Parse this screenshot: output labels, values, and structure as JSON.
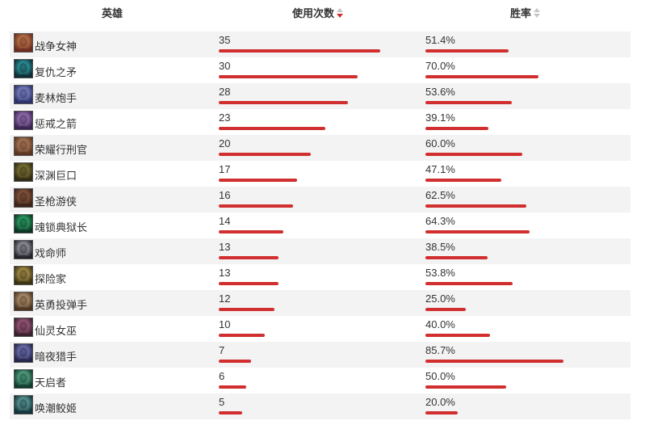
{
  "header": {
    "hero": "英雄",
    "uses": "使用次数",
    "winrate": "胜率"
  },
  "colors": {
    "bar": "#d12f2f",
    "stripe": "#f3f3f3",
    "sort_active": "#d12f2f",
    "sort_idle": "#c6c6c6"
  },
  "sort": {
    "column": "uses",
    "direction": "desc"
  },
  "max_uses_scale": 40,
  "rows": [
    {
      "name": "战争女神",
      "uses": "35",
      "uses_value": 35,
      "winrate": "51.4%",
      "winrate_value": 51.4,
      "avatar_icon": "sivir-portrait-icon",
      "c1": "#6b2a1f",
      "c2": "#e0a060"
    },
    {
      "name": "复仇之矛",
      "uses": "30",
      "uses_value": 30,
      "winrate": "70.0%",
      "winrate_value": 70.0,
      "avatar_icon": "kalista-portrait-icon",
      "c1": "#0e2b33",
      "c2": "#3fd1d9"
    },
    {
      "name": "麦林炮手",
      "uses": "28",
      "uses_value": 28,
      "winrate": "53.6%",
      "winrate_value": 53.6,
      "avatar_icon": "tristana-portrait-icon",
      "c1": "#2b2f6b",
      "c2": "#a9b2e8"
    },
    {
      "name": "惩戒之箭",
      "uses": "23",
      "uses_value": 23,
      "winrate": "39.1%",
      "winrate_value": 39.1,
      "avatar_icon": "varus-portrait-icon",
      "c1": "#3a2450",
      "c2": "#c79de6"
    },
    {
      "name": "荣耀行刑官",
      "uses": "20",
      "uses_value": 20,
      "winrate": "60.0%",
      "winrate_value": 60.0,
      "avatar_icon": "draven-portrait-icon",
      "c1": "#5a3420",
      "c2": "#d6a07a"
    },
    {
      "name": "深渊巨口",
      "uses": "17",
      "uses_value": 17,
      "winrate": "47.1%",
      "winrate_value": 47.1,
      "avatar_icon": "kogmaw-portrait-icon",
      "c1": "#2f2a12",
      "c2": "#a89a4a"
    },
    {
      "name": "圣枪游侠",
      "uses": "16",
      "uses_value": 16,
      "winrate": "62.5%",
      "winrate_value": 62.5,
      "avatar_icon": "lucian-portrait-icon",
      "c1": "#3b2218",
      "c2": "#b07050"
    },
    {
      "name": "魂锁典狱长",
      "uses": "14",
      "uses_value": 14,
      "winrate": "64.3%",
      "winrate_value": 64.3,
      "avatar_icon": "thresh-portrait-icon",
      "c1": "#0c3324",
      "c2": "#3ee08a"
    },
    {
      "name": "戏命师",
      "uses": "13",
      "uses_value": 13,
      "winrate": "38.5%",
      "winrate_value": 38.5,
      "avatar_icon": "jhin-portrait-icon",
      "c1": "#22222a",
      "c2": "#d8d8e0"
    },
    {
      "name": "探险家",
      "uses": "13",
      "uses_value": 13,
      "winrate": "53.8%",
      "winrate_value": 53.8,
      "avatar_icon": "ezreal-portrait-icon",
      "c1": "#3a3012",
      "c2": "#e6c86a"
    },
    {
      "name": "英勇投弹手",
      "uses": "12",
      "uses_value": 12,
      "winrate": "25.0%",
      "winrate_value": 25.0,
      "avatar_icon": "corki-portrait-icon",
      "c1": "#4a3420",
      "c2": "#e8c49a"
    },
    {
      "name": "仙灵女巫",
      "uses": "10",
      "uses_value": 10,
      "winrate": "40.0%",
      "winrate_value": 40.0,
      "avatar_icon": "lulu-portrait-icon",
      "c1": "#3a1f2e",
      "c2": "#d27aa8"
    },
    {
      "name": "暗夜猎手",
      "uses": "7",
      "uses_value": 7,
      "winrate": "85.7%",
      "winrate_value": 85.7,
      "avatar_icon": "vayne-portrait-icon",
      "c1": "#23234a",
      "c2": "#9aa0e6"
    },
    {
      "name": "天启者",
      "uses": "6",
      "uses_value": 6,
      "winrate": "50.0%",
      "winrate_value": 50.0,
      "avatar_icon": "karma-portrait-icon",
      "c1": "#0f3a2e",
      "c2": "#7ee0b4"
    },
    {
      "name": "唤潮鲛姬",
      "uses": "5",
      "uses_value": 5,
      "winrate": "20.0%",
      "winrate_value": 20.0,
      "avatar_icon": "nami-portrait-icon",
      "c1": "#10323a",
      "c2": "#8ad6c8"
    }
  ]
}
